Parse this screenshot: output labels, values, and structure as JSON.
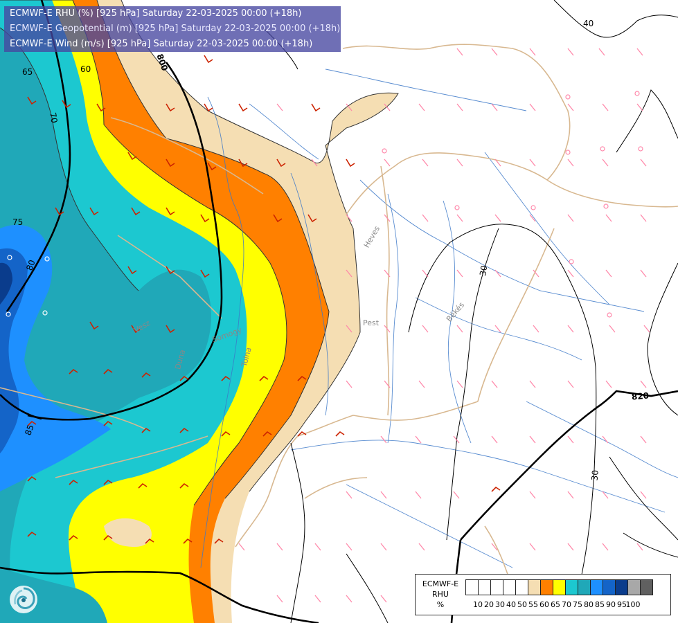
{
  "titles": {
    "line1": "ECMWF-E RHU (%) [925 hPa] Saturday 22-03-2025 00:00 (+18h)",
    "line2": "ECMWF-E Geopotential (m) [925 hPa] Saturday 22-03-2025 00:00 (+18h)",
    "line3": "ECMWF-E Wind (m/s) [925 hPa] Saturday 22-03-2025 00:00 (+18h)"
  },
  "legend": {
    "title_line1": "ECMWF-E",
    "title_line2": "RHU",
    "title_line3": "%",
    "ticks": [
      "10",
      "20",
      "30",
      "40",
      "50",
      "55",
      "60",
      "65",
      "70",
      "75",
      "80",
      "85",
      "90",
      "95",
      "100"
    ],
    "colors": [
      "#ffffff",
      "#ffffff",
      "#ffffff",
      "#ffffff",
      "#ffffff",
      "#f5deb3",
      "#ff8000",
      "#ffff00",
      "#1cc8d0",
      "#20a8b8",
      "#1e90ff",
      "#1464c8",
      "#0a3c8c",
      "#a8a8a8",
      "#606060"
    ]
  },
  "contour_labels": {
    "geopotential_820": "820",
    "geopotential_800": "800",
    "temp_30_a": "30",
    "temp_30_b": "30",
    "temp_40": "40",
    "rhu_60": "60",
    "rhu_65": "65",
    "rhu_70": "70",
    "rhu_75": "75",
    "rhu_80": "80",
    "rhu_85": "85"
  },
  "places": {
    "pest": "Pest",
    "bekes": "Békés",
    "heves": "Heves",
    "veszprem": "Vesz",
    "duna": "Duna",
    "tolna": "Tolna",
    "somogy": "Somogy"
  },
  "colors": {
    "title_bg": "#4646a0",
    "rhu_55": "#f5deb3",
    "rhu_60": "#ff8000",
    "rhu_65": "#ffff00",
    "rhu_70": "#1cc8d0",
    "rhu_75": "#20a8b8",
    "rhu_80": "#1e90ff",
    "rhu_85": "#1464c8",
    "rhu_90": "#0a3c8c",
    "wind_barb_high": "#cc2200",
    "wind_barb_low": "#ff88aa",
    "border": "#d8b890",
    "rivers": "#3c78c8"
  },
  "icons": {
    "logo": "ecmwf-swirl-logo-icon"
  }
}
